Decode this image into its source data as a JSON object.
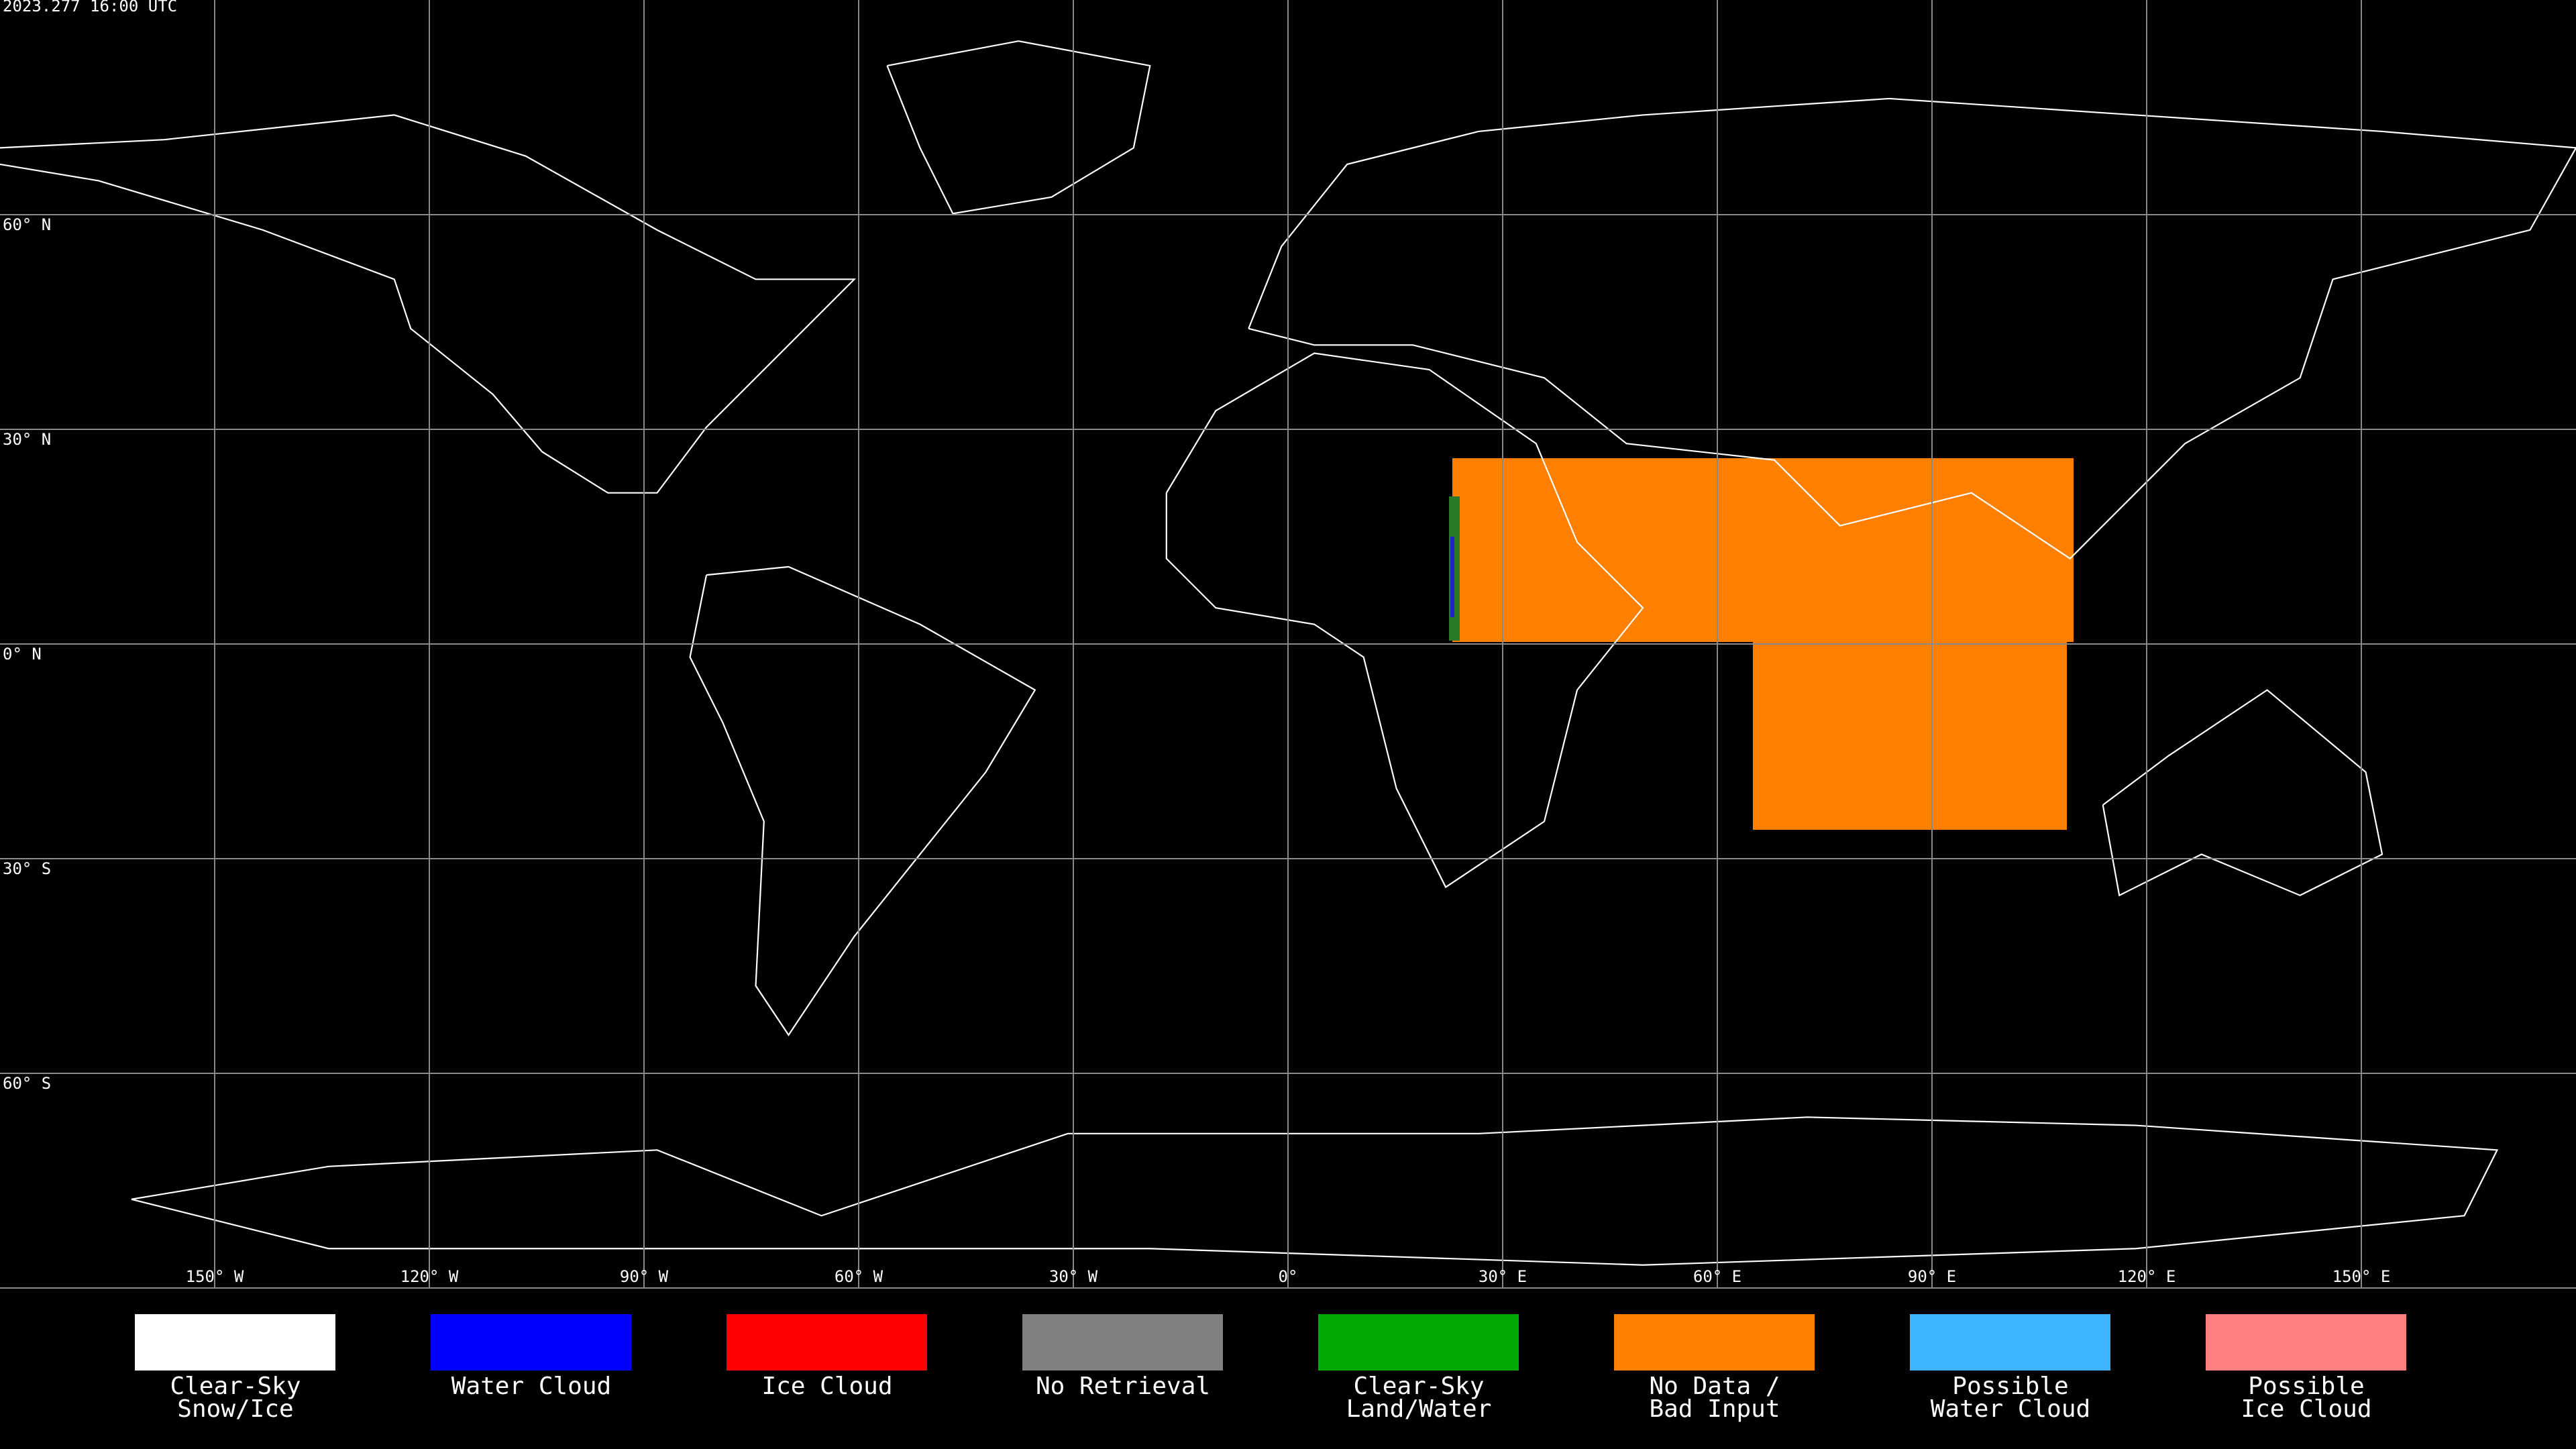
{
  "header": {
    "timestamp": "2023.277 16:00 UTC"
  },
  "map": {
    "lon_lines": [
      {
        "value": -150,
        "label": "150° W"
      },
      {
        "value": -120,
        "label": "120° W"
      },
      {
        "value": -90,
        "label": "90° W"
      },
      {
        "value": -60,
        "label": "60° W"
      },
      {
        "value": -30,
        "label": "30° W"
      },
      {
        "value": 0,
        "label": "0°"
      },
      {
        "value": 30,
        "label": "30° E"
      },
      {
        "value": 60,
        "label": "60° E"
      },
      {
        "value": 90,
        "label": "90° E"
      },
      {
        "value": 120,
        "label": "120° E"
      },
      {
        "value": 150,
        "label": "150° E"
      }
    ],
    "lat_lines": [
      {
        "value": 60,
        "label": "60° N"
      },
      {
        "value": 30,
        "label": "30° N"
      },
      {
        "value": 0,
        "label": "0° N"
      },
      {
        "value": -30,
        "label": "30° S"
      },
      {
        "value": -60,
        "label": "60° S"
      }
    ]
  },
  "legend": [
    {
      "color": "#ffffff",
      "label": [
        "Clear-Sky",
        "Snow/Ice"
      ]
    },
    {
      "color": "#0000ff",
      "label": [
        "Water Cloud"
      ]
    },
    {
      "color": "#ff0000",
      "label": [
        "Ice Cloud"
      ]
    },
    {
      "color": "#808080",
      "label": [
        "No Retrieval"
      ]
    },
    {
      "color": "#00aa00",
      "label": [
        "Clear-Sky",
        "Land/Water"
      ]
    },
    {
      "color": "#ff8000",
      "label": [
        "No Data /",
        "Bad Input"
      ]
    },
    {
      "color": "#3cb4ff",
      "label": [
        "Possible",
        "Water Cloud"
      ]
    },
    {
      "color": "#ff8080",
      "label": [
        "Possible",
        "Ice Cloud"
      ]
    }
  ]
}
